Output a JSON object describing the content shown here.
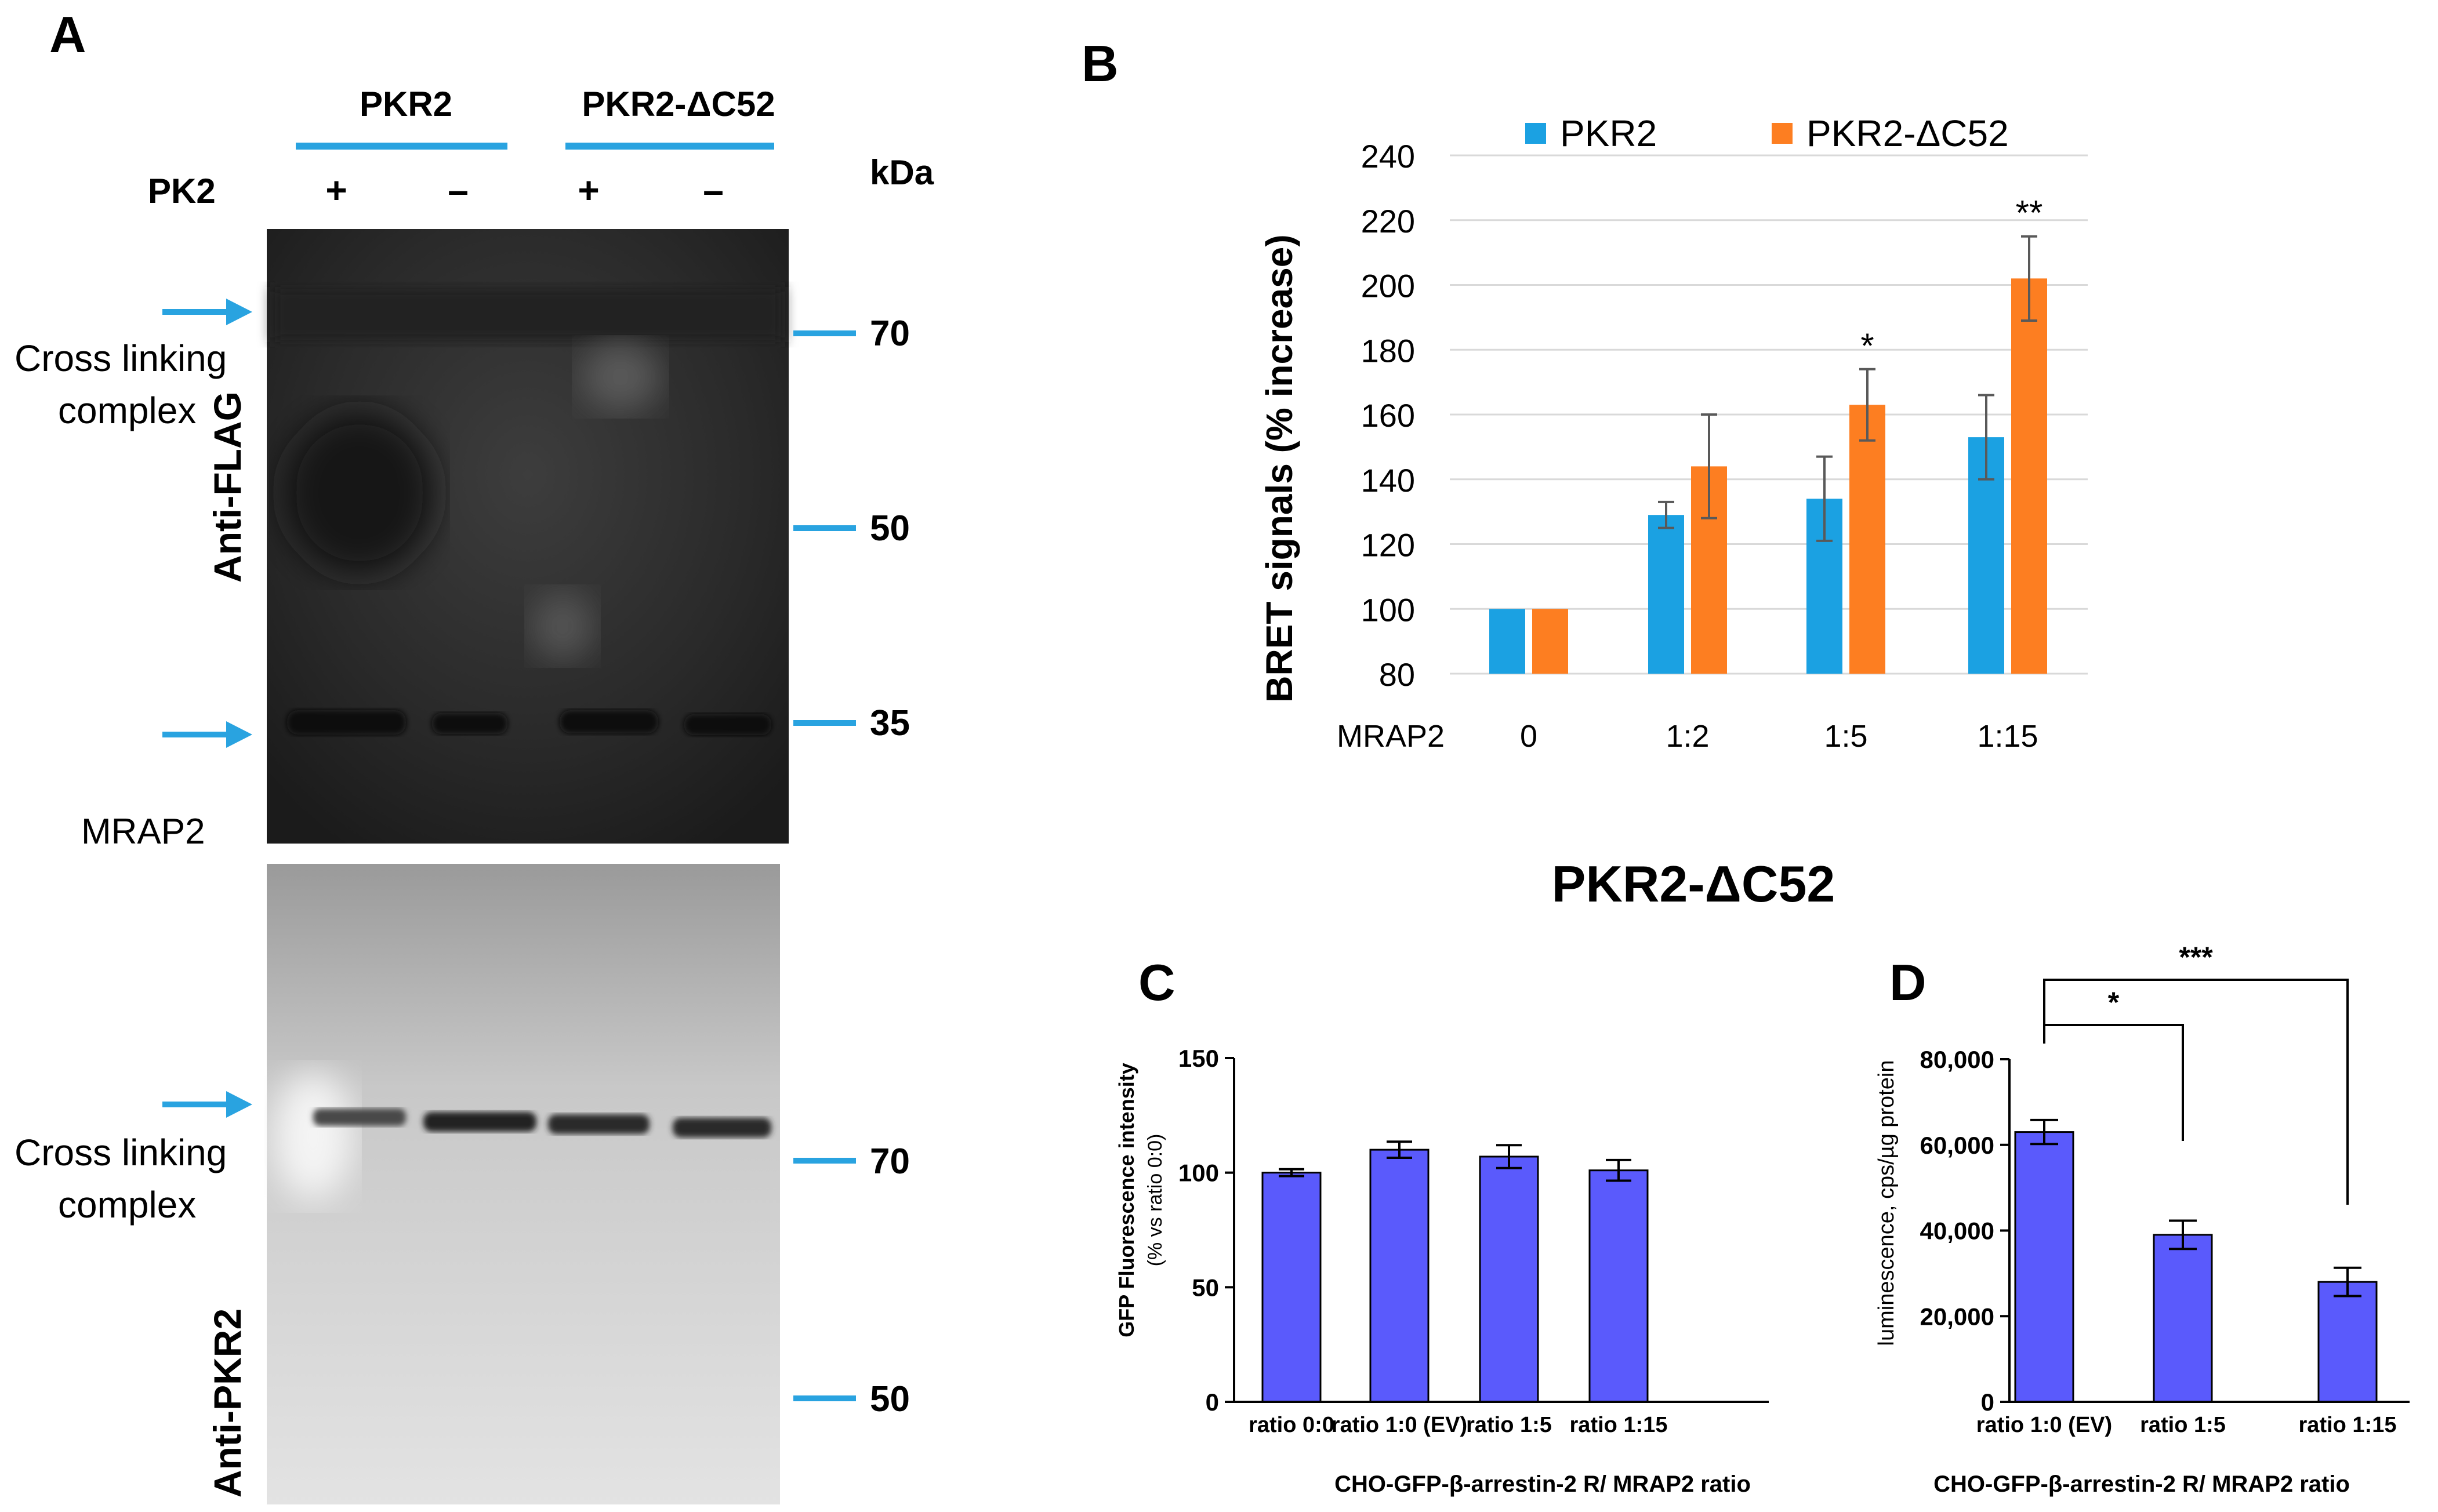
{
  "panel_a": {
    "letter": "A",
    "header_pkr2": "PKR2",
    "header_pkr2_dc52": "PKR2-ΔC52",
    "pk2_label": "PK2",
    "lanes": [
      "+",
      "–",
      "+",
      "–"
    ],
    "kda_label": "kDa",
    "top_blot": {
      "antibody": "Anti-FLAG",
      "annotation_line1": "Cross linking",
      "annotation_line2": "complex",
      "band_label": "MRAP2",
      "markers": [
        "70",
        "50",
        "35"
      ]
    },
    "bottom_blot": {
      "antibody": "Anti-PKR2",
      "annotation_line1": "Cross linking",
      "annotation_line2": "complex",
      "markers": [
        "70",
        "50"
      ]
    },
    "colors": {
      "marker": "#29a3e0",
      "header_line": "#29a3e0"
    }
  },
  "chart_data": [
    {
      "panel": "B",
      "type": "bar",
      "title": "",
      "xlabel": "MRAP2",
      "ylabel": "BRET signals (% increase)",
      "categories": [
        "0",
        "1:2",
        "1:5",
        "1:15"
      ],
      "series": [
        {
          "name": "PKR2",
          "color": "#1ba1e2",
          "values": [
            100,
            129,
            134,
            153
          ],
          "errors": [
            0,
            4,
            13,
            13
          ]
        },
        {
          "name": "PKR2-ΔC52",
          "color": "#fd7e21",
          "values": [
            100,
            144,
            163,
            202
          ],
          "errors": [
            0,
            16,
            11,
            13
          ]
        }
      ],
      "significance": [
        {
          "category": "1:5",
          "series": "PKR2-ΔC52",
          "label": "*"
        },
        {
          "category": "1:15",
          "series": "PKR2-ΔC52",
          "label": "**"
        }
      ],
      "ylim": [
        80,
        240
      ],
      "yticks": [
        "80",
        "100",
        "120",
        "140",
        "160",
        "180",
        "200",
        "220",
        "240"
      ],
      "grid": true,
      "legend": "top"
    },
    {
      "panel": "C",
      "type": "bar",
      "title": "PKR2-ΔC52",
      "xlabel": "CHO-GFP-β-arrestin-2 R/ MRAP2 ratio",
      "ylabel": "GFP Fluorescence intensity",
      "ylabel_sub": "(% vs ratio 0:0)",
      "categories": [
        "ratio 0:0",
        "ratio 1:0 (EV)",
        "ratio 1:5",
        "ratio 1:15"
      ],
      "values": [
        100,
        110,
        107,
        101
      ],
      "errors": [
        1.5,
        3.5,
        5,
        4.5
      ],
      "color": "#5a5afc",
      "ylim": [
        0,
        150
      ],
      "yticks": [
        "0",
        "50",
        "100",
        "150"
      ]
    },
    {
      "panel": "D",
      "type": "bar",
      "xlabel": "CHO-GFP-β-arrestin-2 R/ MRAP2 ratio",
      "ylabel": "luminescence, cps/µg protein",
      "categories": [
        "ratio 1:0 (EV)",
        "ratio 1:5",
        "ratio 1:15"
      ],
      "values": [
        63000,
        39000,
        28000
      ],
      "errors": [
        2800,
        3300,
        3300
      ],
      "color": "#5a5afc",
      "ylim": [
        0,
        80000
      ],
      "yticks": [
        "0",
        "20,000",
        "40,000",
        "60,000",
        "80,000"
      ],
      "significance": [
        {
          "from": "ratio 1:0 (EV)",
          "to": "ratio 1:5",
          "label": "*"
        },
        {
          "from": "ratio 1:0 (EV)",
          "to": "ratio 1:15",
          "label": "***"
        }
      ]
    }
  ]
}
